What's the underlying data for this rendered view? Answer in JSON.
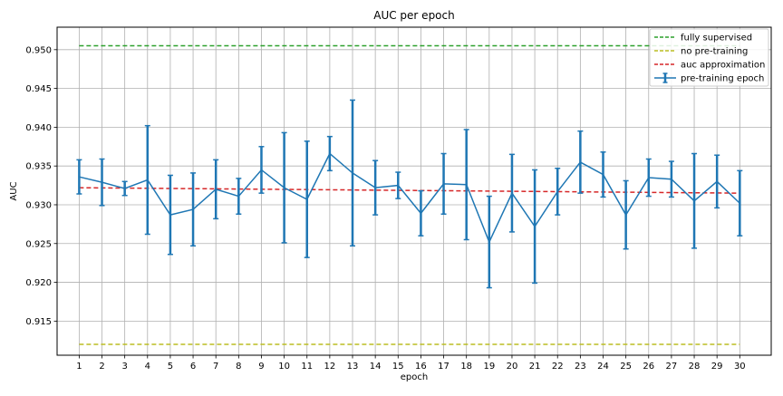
{
  "chart_data": {
    "type": "line",
    "title": "AUC per epoch",
    "xlabel": "epoch",
    "ylabel": "AUC",
    "xlim": [
      0.03,
      31.38
    ],
    "ylim": [
      0.9106,
      0.9529
    ],
    "grid": true,
    "legend_position": "top-right",
    "x_ticks": [
      1,
      2,
      3,
      4,
      5,
      6,
      7,
      8,
      9,
      10,
      11,
      12,
      13,
      14,
      15,
      16,
      17,
      18,
      19,
      20,
      21,
      22,
      23,
      24,
      25,
      26,
      27,
      28,
      29,
      30
    ],
    "y_ticks": [
      0.915,
      0.92,
      0.925,
      0.93,
      0.935,
      0.94,
      0.945,
      0.95
    ],
    "y_tick_labels": [
      "0.915",
      "0.920",
      "0.925",
      "0.930",
      "0.935",
      "0.940",
      "0.945",
      "0.950"
    ],
    "reference_lines": [
      {
        "name": "fully supervised",
        "y": 0.9505,
        "x_range": [
          1,
          30
        ],
        "color": "#2ca02c",
        "style": "dashed"
      },
      {
        "name": "no pre-training",
        "y": 0.912,
        "x_range": [
          1,
          30
        ],
        "color": "#bcbd22",
        "style": "dashed"
      },
      {
        "name": "auc approximation",
        "y_start": 0.9322,
        "y_end": 0.9315,
        "x_range": [
          1,
          30
        ],
        "color": "#d62728",
        "style": "dashed"
      }
    ],
    "series": [
      {
        "name": "pre-training epoch",
        "color": "#1f77b4",
        "x": [
          1,
          2,
          3,
          4,
          5,
          6,
          7,
          8,
          9,
          10,
          11,
          12,
          13,
          14,
          15,
          16,
          17,
          18,
          19,
          20,
          21,
          22,
          23,
          24,
          25,
          26,
          27,
          28,
          29,
          30
        ],
        "values": [
          0.9336,
          0.9329,
          0.9321,
          0.9332,
          0.9287,
          0.9294,
          0.932,
          0.9311,
          0.9345,
          0.9322,
          0.9307,
          0.9366,
          0.9341,
          0.9322,
          0.9325,
          0.9289,
          0.9327,
          0.9326,
          0.9252,
          0.9315,
          0.9272,
          0.9317,
          0.9355,
          0.9339,
          0.9287,
          0.9335,
          0.9333,
          0.9305,
          0.933,
          0.9302
        ],
        "errors": [
          0.0022,
          0.003,
          0.0009,
          0.007,
          0.0051,
          0.0047,
          0.0038,
          0.0023,
          0.003,
          0.0071,
          0.0075,
          0.0022,
          0.0094,
          0.0035,
          0.0017,
          0.0029,
          0.0039,
          0.0071,
          0.0059,
          0.005,
          0.0073,
          0.003,
          0.004,
          0.0029,
          0.0044,
          0.0024,
          0.0023,
          0.0061,
          0.0034,
          0.0042
        ]
      }
    ]
  }
}
